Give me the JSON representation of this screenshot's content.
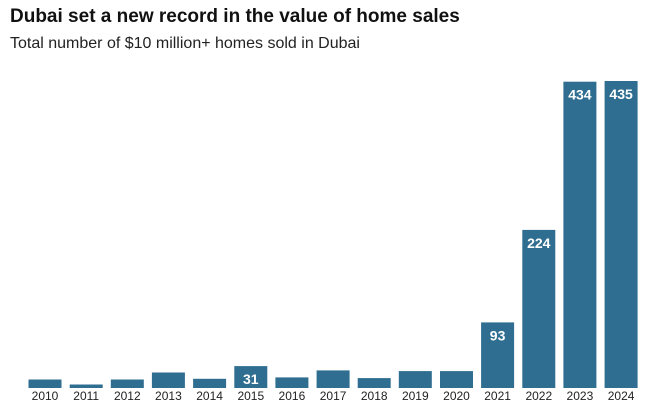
{
  "title": "Dubai set a new record in the value of home sales",
  "subtitle": "Total number of $10 million+ homes sold in Dubai",
  "colors": {
    "bar": "#2f6e90",
    "bar_label": "#ffffff",
    "text": "#222222"
  },
  "chart_data": {
    "type": "bar",
    "title": "Dubai set a new record in the value of home sales",
    "subtitle": "Total number of $10 million+ homes sold in Dubai",
    "categories": [
      "2010",
      "2011",
      "2012",
      "2013",
      "2014",
      "2015",
      "2016",
      "2017",
      "2018",
      "2019",
      "2020",
      "2021",
      "2022",
      "2023",
      "2024"
    ],
    "values": [
      12,
      5,
      12,
      22,
      13,
      31,
      15,
      25,
      14,
      24,
      24,
      93,
      224,
      434,
      435
    ],
    "data_labels": {
      "2015": "31",
      "2021": "93",
      "2022": "224",
      "2023": "434",
      "2024": "435"
    },
    "xlabel": "",
    "ylabel": "",
    "ylim": [
      0,
      435
    ],
    "grid": false,
    "legend": "none"
  }
}
